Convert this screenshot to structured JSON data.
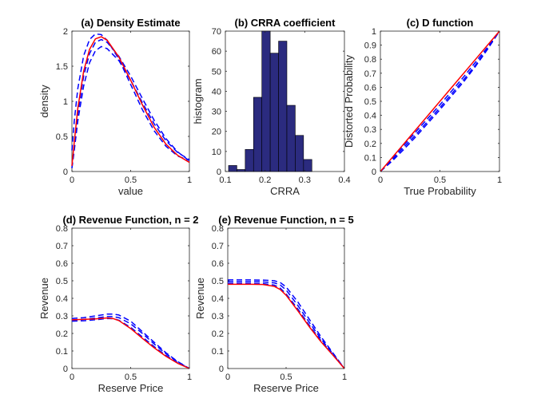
{
  "chart_data": [
    {
      "id": "a",
      "type": "line",
      "title": "(a) Density Estimate",
      "xlabel": "value",
      "ylabel": "density",
      "xlim": [
        0,
        1
      ],
      "ylim": [
        0,
        2
      ],
      "xticks": [
        0,
        0.5,
        1
      ],
      "xtick_labels": [
        "0",
        "0.5",
        "1"
      ],
      "yticks": [
        0,
        0.5,
        1,
        1.5,
        2
      ],
      "ytick_labels": [
        "0",
        "0.5",
        "1",
        "1.5",
        "2"
      ],
      "series": [
        {
          "style": "dashed",
          "color": "#0000ff",
          "x": [
            0,
            0.02,
            0.05,
            0.1,
            0.15,
            0.2,
            0.25,
            0.3,
            0.4,
            0.5,
            0.6,
            0.7,
            0.8,
            0.9,
            1.0
          ],
          "y": [
            0.3,
            0.72,
            1.18,
            1.65,
            1.88,
            1.96,
            1.95,
            1.87,
            1.6,
            1.24,
            0.88,
            0.58,
            0.36,
            0.22,
            0.16
          ]
        },
        {
          "style": "dashed",
          "color": "#0000ff",
          "x": [
            0,
            0.02,
            0.05,
            0.1,
            0.15,
            0.2,
            0.25,
            0.3,
            0.4,
            0.5,
            0.6,
            0.7,
            0.8,
            0.9,
            1.0
          ],
          "y": [
            0.05,
            0.3,
            0.72,
            1.22,
            1.55,
            1.72,
            1.78,
            1.75,
            1.58,
            1.3,
            0.98,
            0.68,
            0.44,
            0.27,
            0.17
          ]
        },
        {
          "style": "dashed",
          "color": "#0000ff",
          "x": [
            0,
            0.02,
            0.05,
            0.1,
            0.15,
            0.2,
            0.25,
            0.3,
            0.4,
            0.5,
            0.6,
            0.7,
            0.8,
            0.9,
            1.0
          ],
          "y": [
            0.05,
            0.35,
            0.82,
            1.36,
            1.68,
            1.84,
            1.88,
            1.84,
            1.64,
            1.36,
            1.04,
            0.73,
            0.47,
            0.28,
            0.15
          ]
        },
        {
          "style": "solid",
          "color": "#ff0000",
          "x": [
            0,
            0.02,
            0.05,
            0.1,
            0.15,
            0.2,
            0.25,
            0.3,
            0.4,
            0.5,
            0.6,
            0.7,
            0.8,
            0.9,
            1.0
          ],
          "y": [
            0.08,
            0.42,
            0.9,
            1.43,
            1.74,
            1.89,
            1.92,
            1.87,
            1.63,
            1.3,
            0.95,
            0.63,
            0.39,
            0.23,
            0.13
          ]
        }
      ]
    },
    {
      "id": "b",
      "type": "bar",
      "title": "(b) CRRA coefficient",
      "xlabel": "CRRA",
      "ylabel": "histogram",
      "xlim": [
        0.1,
        0.4
      ],
      "ylim": [
        0,
        70
      ],
      "xticks": [
        0.1,
        0.2,
        0.3,
        0.4
      ],
      "xtick_labels": [
        "0.1",
        "0.2",
        "0.3",
        "0.4"
      ],
      "yticks": [
        0,
        10,
        20,
        30,
        40,
        50,
        60,
        70
      ],
      "ytick_labels": [
        "0",
        "10",
        "20",
        "30",
        "40",
        "50",
        "60",
        "70"
      ],
      "bar_color": "#2b2b7f",
      "bin_edges": [
        0.108,
        0.129,
        0.15,
        0.171,
        0.192,
        0.213,
        0.234,
        0.255,
        0.276,
        0.297,
        0.318
      ],
      "values": [
        3,
        1,
        11,
        37,
        70,
        59,
        65,
        33,
        18,
        6
      ]
    },
    {
      "id": "c",
      "type": "line",
      "title": "(c) D function",
      "xlabel": "True Probability",
      "ylabel": "Distorted Probability",
      "xlim": [
        0,
        1
      ],
      "ylim": [
        0,
        1
      ],
      "xticks": [
        0,
        0.5,
        1
      ],
      "xtick_labels": [
        "0",
        "0.5",
        "1"
      ],
      "yticks": [
        0,
        0.1,
        0.2,
        0.3,
        0.4,
        0.5,
        0.6,
        0.7,
        0.8,
        0.9,
        1
      ],
      "ytick_labels": [
        "0",
        "0.1",
        "0.2",
        "0.3",
        "0.4",
        "0.5",
        "0.6",
        "0.7",
        "0.8",
        "0.9",
        "1"
      ],
      "series": [
        {
          "style": "dashed",
          "color": "#0000ff",
          "x": [
            0,
            0.1,
            0.2,
            0.3,
            0.4,
            0.5,
            0.6,
            0.7,
            0.8,
            0.9,
            1.0
          ],
          "y": [
            0,
            0.075,
            0.16,
            0.25,
            0.345,
            0.44,
            0.54,
            0.64,
            0.75,
            0.87,
            1.0
          ]
        },
        {
          "style": "dashed",
          "color": "#0000ff",
          "x": [
            0,
            0.1,
            0.2,
            0.3,
            0.4,
            0.5,
            0.6,
            0.7,
            0.8,
            0.9,
            1.0
          ],
          "y": [
            0,
            0.085,
            0.175,
            0.265,
            0.36,
            0.455,
            0.555,
            0.655,
            0.76,
            0.875,
            1.0
          ]
        },
        {
          "style": "dashed",
          "color": "#0000ff",
          "x": [
            0,
            0.1,
            0.2,
            0.3,
            0.4,
            0.5,
            0.6,
            0.7,
            0.8,
            0.9,
            1.0
          ],
          "y": [
            0,
            0.095,
            0.19,
            0.285,
            0.38,
            0.475,
            0.575,
            0.675,
            0.78,
            0.885,
            1.0
          ]
        },
        {
          "style": "solid",
          "color": "#ff0000",
          "x": [
            0,
            0.2,
            0.4,
            0.6,
            0.8,
            1.0
          ],
          "y": [
            0,
            0.2,
            0.4,
            0.6,
            0.8,
            1.0
          ]
        }
      ]
    },
    {
      "id": "d",
      "type": "line",
      "title": "(d) Revenue Function, n = 2",
      "xlabel": "Reserve Price",
      "ylabel": "Revenue",
      "xlim": [
        0,
        1
      ],
      "ylim": [
        0,
        0.8
      ],
      "xticks": [
        0,
        0.5,
        1
      ],
      "xtick_labels": [
        "0",
        "0.5",
        "1"
      ],
      "yticks": [
        0,
        0.1,
        0.2,
        0.3,
        0.4,
        0.5,
        0.6,
        0.7,
        0.8
      ],
      "ytick_labels": [
        "0",
        "0.1",
        "0.2",
        "0.3",
        "0.4",
        "0.5",
        "0.6",
        "0.7",
        "0.8"
      ],
      "series": [
        {
          "style": "dashed",
          "color": "#0000ff",
          "x": [
            0,
            0.1,
            0.2,
            0.3,
            0.35,
            0.4,
            0.5,
            0.6,
            0.7,
            0.8,
            0.9,
            1.0
          ],
          "y": [
            0.285,
            0.29,
            0.3,
            0.31,
            0.31,
            0.305,
            0.27,
            0.21,
            0.15,
            0.09,
            0.04,
            0.0
          ]
        },
        {
          "style": "dashed",
          "color": "#0000ff",
          "x": [
            0,
            0.1,
            0.2,
            0.3,
            0.35,
            0.4,
            0.5,
            0.6,
            0.7,
            0.8,
            0.9,
            1.0
          ],
          "y": [
            0.275,
            0.28,
            0.288,
            0.296,
            0.296,
            0.29,
            0.255,
            0.2,
            0.14,
            0.085,
            0.038,
            0.0
          ]
        },
        {
          "style": "dashed",
          "color": "#0000ff",
          "x": [
            0,
            0.1,
            0.2,
            0.3,
            0.35,
            0.4,
            0.5,
            0.6,
            0.7,
            0.8,
            0.9,
            1.0
          ],
          "y": [
            0.27,
            0.272,
            0.278,
            0.285,
            0.284,
            0.275,
            0.235,
            0.18,
            0.125,
            0.075,
            0.033,
            0.0
          ]
        },
        {
          "style": "solid",
          "color": "#ff0000",
          "x": [
            0,
            0.1,
            0.2,
            0.3,
            0.35,
            0.4,
            0.5,
            0.6,
            0.7,
            0.8,
            0.9,
            1.0
          ],
          "y": [
            0.278,
            0.28,
            0.283,
            0.288,
            0.285,
            0.273,
            0.228,
            0.172,
            0.118,
            0.07,
            0.03,
            0.0
          ]
        }
      ]
    },
    {
      "id": "e",
      "type": "line",
      "title": "(e) Revenue Function, n = 5",
      "xlabel": "Reserve Price",
      "ylabel": "Revenue",
      "xlim": [
        0,
        1
      ],
      "ylim": [
        0,
        0.8
      ],
      "xticks": [
        0,
        0.5,
        1
      ],
      "xtick_labels": [
        "0",
        "0.5",
        "1"
      ],
      "yticks": [
        0,
        0.1,
        0.2,
        0.3,
        0.4,
        0.5,
        0.6,
        0.7,
        0.8
      ],
      "ytick_labels": [
        "0",
        "0.1",
        "0.2",
        "0.3",
        "0.4",
        "0.5",
        "0.6",
        "0.7",
        "0.8"
      ],
      "series": [
        {
          "style": "dashed",
          "color": "#0000ff",
          "x": [
            0,
            0.1,
            0.2,
            0.3,
            0.4,
            0.45,
            0.5,
            0.6,
            0.7,
            0.8,
            0.9,
            1.0
          ],
          "y": [
            0.505,
            0.505,
            0.505,
            0.504,
            0.5,
            0.49,
            0.465,
            0.38,
            0.28,
            0.18,
            0.09,
            0.0
          ]
        },
        {
          "style": "dashed",
          "color": "#0000ff",
          "x": [
            0,
            0.1,
            0.2,
            0.3,
            0.4,
            0.45,
            0.5,
            0.6,
            0.7,
            0.8,
            0.9,
            1.0
          ],
          "y": [
            0.495,
            0.495,
            0.495,
            0.494,
            0.488,
            0.476,
            0.448,
            0.36,
            0.262,
            0.168,
            0.085,
            0.0
          ]
        },
        {
          "style": "dashed",
          "color": "#0000ff",
          "x": [
            0,
            0.1,
            0.2,
            0.3,
            0.4,
            0.45,
            0.5,
            0.6,
            0.7,
            0.8,
            0.9,
            1.0
          ],
          "y": [
            0.485,
            0.485,
            0.485,
            0.484,
            0.475,
            0.458,
            0.425,
            0.34,
            0.245,
            0.158,
            0.08,
            0.0
          ]
        },
        {
          "style": "solid",
          "color": "#ff0000",
          "x": [
            0,
            0.1,
            0.2,
            0.3,
            0.4,
            0.45,
            0.5,
            0.6,
            0.7,
            0.8,
            0.9,
            1.0
          ],
          "y": [
            0.48,
            0.48,
            0.48,
            0.479,
            0.468,
            0.45,
            0.418,
            0.33,
            0.237,
            0.152,
            0.077,
            0.0
          ]
        }
      ]
    }
  ]
}
